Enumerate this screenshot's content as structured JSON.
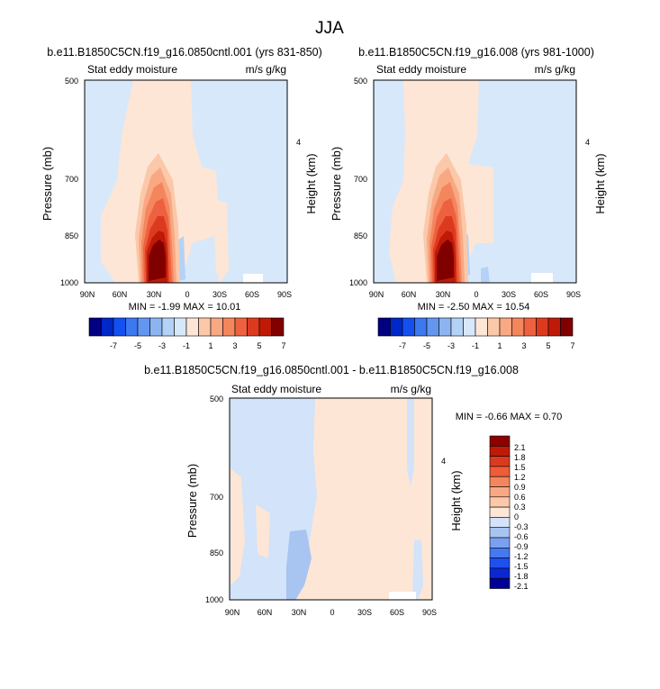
{
  "figure": {
    "title": "JJA"
  },
  "colors": {
    "levels_main": [
      "#000080",
      "#0028c8",
      "#1450f0",
      "#3c78f0",
      "#6496f0",
      "#8cb4f0",
      "#b4d2f5",
      "#d7e8fa",
      "#fde6d6",
      "#fbc8aa",
      "#f8a883",
      "#f4865e",
      "#ed6140",
      "#dc3a1f",
      "#bf1a08",
      "#800000"
    ],
    "levels_diff": [
      "#000096",
      "#0a28d2",
      "#1e50f0",
      "#4678f0",
      "#7aa0f0",
      "#a8c4f0",
      "#d2e3fa",
      "#fde6d6",
      "#fbc8aa",
      "#f8a883",
      "#f4865e",
      "#ee5c38",
      "#dc3a1f",
      "#bf1a08",
      "#8c0000"
    ]
  },
  "chart_data": [
    {
      "type": "heatmap",
      "panel": "top-left",
      "title": "b.e11.B1850C5CN.f19_g16.0850cntl.001 (yrs 831-850)",
      "subtitle_left": "Stat eddy moisture",
      "subtitle_right": "m/s g/kg",
      "ylabel": "Pressure (mb)",
      "ylabel_right": "Height (km)",
      "x_ticks": [
        "90N",
        "60N",
        "30N",
        "0",
        "30S",
        "60S",
        "90S"
      ],
      "y_ticks": [
        "500",
        "700",
        "850",
        "1000"
      ],
      "y_right_ticks": [
        "4"
      ],
      "stats": "MIN =  -1.99  MAX =  10.01",
      "colorbar_labels": [
        "-7",
        "-5",
        "-3",
        "-1",
        "1",
        "3",
        "5",
        "7"
      ],
      "max_value": 10.01,
      "min_value": -1.99
    },
    {
      "type": "heatmap",
      "panel": "top-right",
      "title": "b.e11.B1850C5CN.f19_g16.008 (yrs 981-1000)",
      "subtitle_left": "Stat eddy moisture",
      "subtitle_right": "m/s g/kg",
      "ylabel": "Pressure (mb)",
      "ylabel_right": "Height (km)",
      "x_ticks": [
        "90N",
        "60N",
        "30N",
        "0",
        "30S",
        "60S",
        "90S"
      ],
      "y_ticks": [
        "500",
        "700",
        "850",
        "1000"
      ],
      "y_right_ticks": [
        "4"
      ],
      "stats": "MIN =  -2.50  MAX =  10.54",
      "colorbar_labels": [
        "-7",
        "-5",
        "-3",
        "-1",
        "1",
        "3",
        "5",
        "7"
      ],
      "max_value": 10.54,
      "min_value": -2.5
    },
    {
      "type": "heatmap",
      "panel": "bottom",
      "title": "b.e11.B1850C5CN.f19_g16.0850cntl.001 - b.e11.B1850C5CN.f19_g16.008",
      "subtitle_left": "Stat eddy moisture",
      "subtitle_right": "m/s g/kg",
      "ylabel": "Pressure (mb)",
      "ylabel_right": "Height (km)",
      "x_ticks": [
        "90N",
        "60N",
        "30N",
        "0",
        "30S",
        "60S",
        "90S"
      ],
      "y_ticks": [
        "500",
        "700",
        "850",
        "1000"
      ],
      "y_right_ticks": [
        "4"
      ],
      "stats": "MIN =  -0.66  MAX =    0.70",
      "colorbar_labels": [
        "2.1",
        "1.8",
        "1.5",
        "1.2",
        "0.9",
        "0.6",
        "0.3",
        "0",
        "-0.3",
        "-0.6",
        "-0.9",
        "-1.2",
        "-1.5",
        "-1.8",
        "-2.1"
      ],
      "max_value": 0.7,
      "min_value": -0.66
    }
  ]
}
